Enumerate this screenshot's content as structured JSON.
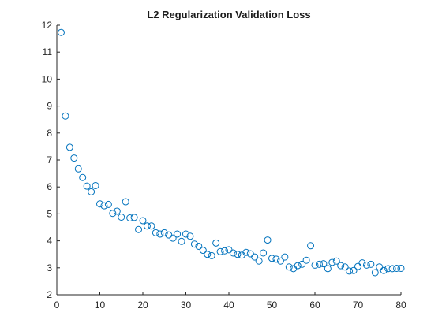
{
  "chart_data": {
    "type": "scatter",
    "title": "L2 Regularization Validation Loss",
    "xlabel": "",
    "ylabel": "",
    "xlim": [
      0,
      80
    ],
    "ylim": [
      2,
      12
    ],
    "xticks": [
      0,
      10,
      20,
      30,
      40,
      50,
      60,
      70,
      80
    ],
    "yticks": [
      2,
      3,
      4,
      5,
      6,
      7,
      8,
      9,
      10,
      11,
      12
    ],
    "grid": false,
    "marker": "circle-open",
    "color": "#0072BD",
    "series": [
      {
        "x": [
          1,
          2,
          3,
          4,
          5,
          6,
          7,
          8,
          9,
          10,
          11,
          12,
          13,
          14,
          15,
          16,
          17,
          18,
          19,
          20,
          21,
          22,
          23,
          24,
          25,
          26,
          27,
          28,
          29,
          30,
          31,
          32,
          33,
          34,
          35,
          36,
          37,
          38,
          39,
          40,
          41,
          42,
          43,
          44,
          45,
          46,
          47,
          48,
          49,
          50,
          51,
          52,
          53,
          54,
          55,
          56,
          57,
          58,
          59,
          60,
          61,
          62,
          63,
          64,
          65,
          66,
          67,
          68,
          69,
          70,
          71,
          72,
          73,
          74,
          75,
          76,
          77,
          78,
          79,
          80
        ],
        "y": [
          11.73,
          8.63,
          7.47,
          7.07,
          6.67,
          6.35,
          6.03,
          5.82,
          6.05,
          5.37,
          5.3,
          5.35,
          5.02,
          5.1,
          4.88,
          5.45,
          4.85,
          4.87,
          4.42,
          4.75,
          4.55,
          4.55,
          4.3,
          4.25,
          4.3,
          4.22,
          4.1,
          4.25,
          3.98,
          4.25,
          4.17,
          3.88,
          3.8,
          3.65,
          3.5,
          3.45,
          3.92,
          3.6,
          3.63,
          3.67,
          3.55,
          3.5,
          3.47,
          3.57,
          3.52,
          3.4,
          3.25,
          3.55,
          4.03,
          3.35,
          3.32,
          3.25,
          3.4,
          3.03,
          2.97,
          3.08,
          3.13,
          3.28,
          3.82,
          3.1,
          3.13,
          3.15,
          2.97,
          3.2,
          3.25,
          3.08,
          3.03,
          2.88,
          2.9,
          3.05,
          3.18,
          3.1,
          3.13,
          2.82,
          3.03,
          2.9,
          2.97,
          2.97,
          2.98,
          2.98
        ]
      }
    ]
  }
}
